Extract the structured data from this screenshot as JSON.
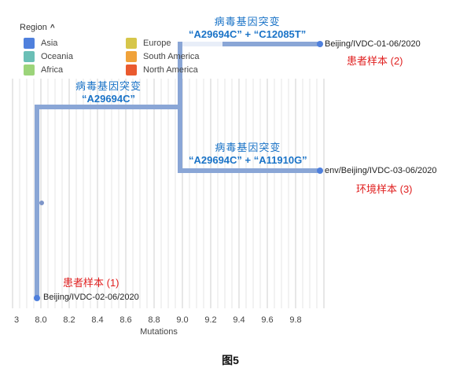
{
  "legend": {
    "title": "Region",
    "items": [
      {
        "label": "Asia",
        "color": "#4f80dd"
      },
      {
        "label": "Europe",
        "color": "#d6c64a"
      },
      {
        "label": "Oceania",
        "color": "#6bbfb6"
      },
      {
        "label": "South America",
        "color": "#f0a23a"
      },
      {
        "label": "Africa",
        "color": "#9cd47a"
      },
      {
        "label": "North America",
        "color": "#ea5a2f"
      }
    ]
  },
  "annotations": {
    "top": {
      "cn": "病毒基因突变",
      "mut": "“A29694C” + “C12085T”"
    },
    "left": {
      "cn": "病毒基因突变",
      "mut": "“A29694C”"
    },
    "mid": {
      "cn": "病毒基因突变",
      "mut": "“A29694C” + “A11910G”"
    }
  },
  "samples": {
    "s2": {
      "tip": "Beijing/IVDC-01-06/2020",
      "red": "患者样本 (2)"
    },
    "s3": {
      "tip": "env/Beijing/IVDC-03-06/2020",
      "red": "环境样本 (3)"
    },
    "s1": {
      "tip": "Beijing/IVDC-02-06/2020",
      "red": "患者样本 (1)"
    }
  },
  "axis": {
    "title": "Mutations",
    "ticks": [
      "8.0",
      "8.2",
      "8.4",
      "8.6",
      "8.8",
      "9.0",
      "9.2",
      "9.4",
      "9.6",
      "9.8"
    ],
    "left_partial": "3"
  },
  "caption": "图5",
  "colors": {
    "branch": "#8aa6d6",
    "tip": "#4f80dd",
    "annotation": "#1a73c7",
    "red_label": "#e02020"
  }
}
